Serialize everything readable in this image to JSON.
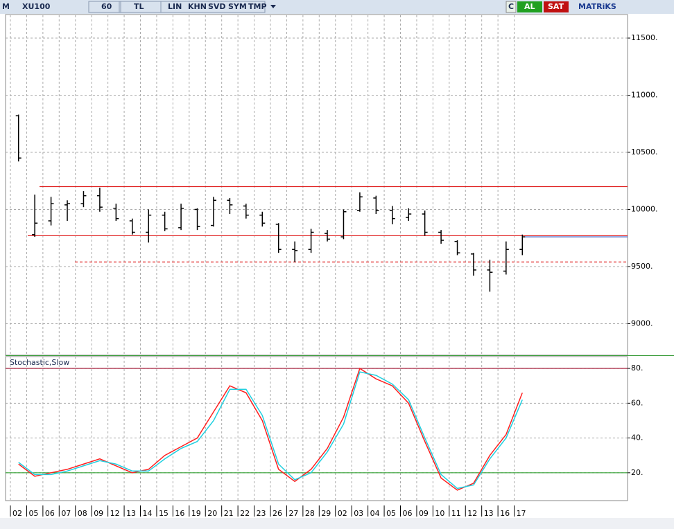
{
  "toolbar": {
    "mode": "M",
    "symbol": "XU100",
    "period": "60",
    "currency": "TL",
    "buttons": [
      "LIN",
      "KHN",
      "SVD",
      "SYM",
      "TMP"
    ],
    "refresh": "C",
    "buy": "AL",
    "sell": "SAT",
    "brand": "MATRiKS"
  },
  "chart_data": [
    {
      "type": "ohlc",
      "color": "#000000",
      "categories": [
        "02",
        "05",
        "06",
        "07",
        "08",
        "09",
        "12",
        "13",
        "14",
        "15",
        "16",
        "19",
        "20",
        "21",
        "22",
        "23",
        "26",
        "27",
        "28",
        "29",
        "02",
        "03",
        "04",
        "05",
        "06",
        "09",
        "10",
        "11",
        "12",
        "13",
        "16",
        "17"
      ],
      "open": [
        10820,
        9780,
        9900,
        10040,
        10050,
        10120,
        10010,
        9900,
        9800,
        9950,
        9840,
        10000,
        9860,
        10080,
        10030,
        9950,
        9870,
        9650,
        9650,
        9790,
        9760,
        9990,
        10100,
        9990,
        9930,
        9960,
        9800,
        9720,
        9610,
        9470,
        9460,
        9650
      ],
      "high": [
        10830,
        10130,
        10110,
        10080,
        10160,
        10190,
        10050,
        9920,
        10000,
        9980,
        10050,
        10010,
        10110,
        10100,
        10050,
        9980,
        9880,
        9720,
        9830,
        9820,
        10000,
        10150,
        10120,
        10030,
        10010,
        9990,
        9820,
        9730,
        9620,
        9560,
        9720,
        9780
      ],
      "low": [
        10420,
        9760,
        9860,
        9900,
        10020,
        9980,
        9900,
        9780,
        9710,
        9810,
        9820,
        9820,
        9850,
        9960,
        9920,
        9850,
        9620,
        9540,
        9620,
        9720,
        9740,
        9980,
        9960,
        9870,
        9900,
        9770,
        9700,
        9600,
        9420,
        9280,
        9430,
        9600
      ],
      "close": [
        10450,
        9880,
        10050,
        10050,
        10120,
        10020,
        9920,
        9800,
        9950,
        9830,
        10010,
        9850,
        10080,
        10040,
        9950,
        9880,
        9650,
        9640,
        9800,
        9740,
        9980,
        10110,
        9990,
        9920,
        9960,
        9800,
        9730,
        9620,
        9470,
        9450,
        9650,
        9760
      ],
      "ylim": [
        8730,
        11700
      ],
      "yticks": [
        {
          "value": 9000,
          "label": "9000."
        },
        {
          "value": 9500,
          "label": "9500."
        },
        {
          "value": 10000,
          "label": "10000."
        },
        {
          "value": 10500,
          "label": "10500."
        },
        {
          "value": 11000,
          "label": "11000."
        },
        {
          "value": 11500,
          "label": "11500."
        }
      ],
      "hlines": [
        {
          "value": 10200,
          "color": "#e02020",
          "dashed": false
        },
        {
          "value": 9770,
          "color": "#e02020",
          "dashed": false
        },
        {
          "value": 9540,
          "color": "#e02020",
          "dashed": true
        },
        {
          "value": 9760,
          "color": "#3050c0",
          "dashed": false
        }
      ],
      "grid": true
    },
    {
      "type": "line",
      "title": "Stochastic,Slow",
      "series": [
        {
          "color": "#ff2020",
          "values": [
            25,
            18,
            20,
            22,
            25,
            28,
            24,
            20,
            22,
            30,
            35,
            40,
            55,
            70,
            66,
            50,
            22,
            15,
            22,
            34,
            52,
            80,
            74,
            70,
            60,
            38,
            17,
            10,
            14,
            30,
            42,
            66
          ]
        },
        {
          "color": "#20d0e0",
          "values": [
            26,
            19,
            19,
            21,
            24,
            27,
            25,
            21,
            21,
            28,
            34,
            38,
            50,
            68,
            68,
            53,
            25,
            16,
            20,
            32,
            48,
            78,
            76,
            71,
            62,
            40,
            19,
            11,
            13,
            28,
            40,
            62
          ]
        }
      ],
      "ylim": [
        4.4,
        86.8
      ],
      "yticks": [
        {
          "value": 20,
          "label": "20."
        },
        {
          "value": 40,
          "label": "40."
        },
        {
          "value": 60,
          "label": "60."
        },
        {
          "value": 80,
          "label": "80."
        }
      ],
      "hlines": [
        {
          "value": 80,
          "color": "#a01030",
          "dashed": false
        },
        {
          "value": 20,
          "color": "#30a030",
          "dashed": false
        }
      ],
      "grid": true
    }
  ]
}
